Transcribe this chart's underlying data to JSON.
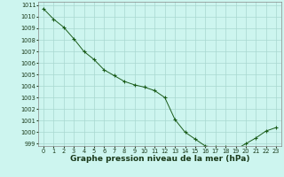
{
  "x": [
    0,
    1,
    2,
    3,
    4,
    5,
    6,
    7,
    8,
    9,
    10,
    11,
    12,
    13,
    14,
    15,
    16,
    17,
    18,
    19,
    20,
    21,
    22,
    23
  ],
  "y": [
    1010.7,
    1009.8,
    1009.1,
    1008.1,
    1007.0,
    1006.3,
    1005.4,
    1004.9,
    1004.4,
    1004.1,
    1003.9,
    1003.6,
    1003.0,
    1001.1,
    1000.0,
    999.4,
    998.8,
    998.7,
    998.7,
    998.5,
    999.0,
    999.5,
    1000.1,
    1000.4
  ],
  "bg_color": "#cdf5ef",
  "line_color": "#1a5c1a",
  "marker_color": "#1a5c1a",
  "grid_color": "#a8d8d0",
  "xlabel": "Graphe pression niveau de la mer (hPa)",
  "xlabel_fontsize": 6.5,
  "tick_fontsize": 4.8,
  "ylim_min": 998.8,
  "ylim_max": 1011.3,
  "xlim_min": -0.5,
  "xlim_max": 23.5,
  "yticks": [
    999,
    1000,
    1001,
    1002,
    1003,
    1004,
    1005,
    1006,
    1007,
    1008,
    1009,
    1010,
    1011
  ],
  "xticks": [
    0,
    1,
    2,
    3,
    4,
    5,
    6,
    7,
    8,
    9,
    10,
    11,
    12,
    13,
    14,
    15,
    16,
    17,
    18,
    19,
    20,
    21,
    22,
    23
  ]
}
